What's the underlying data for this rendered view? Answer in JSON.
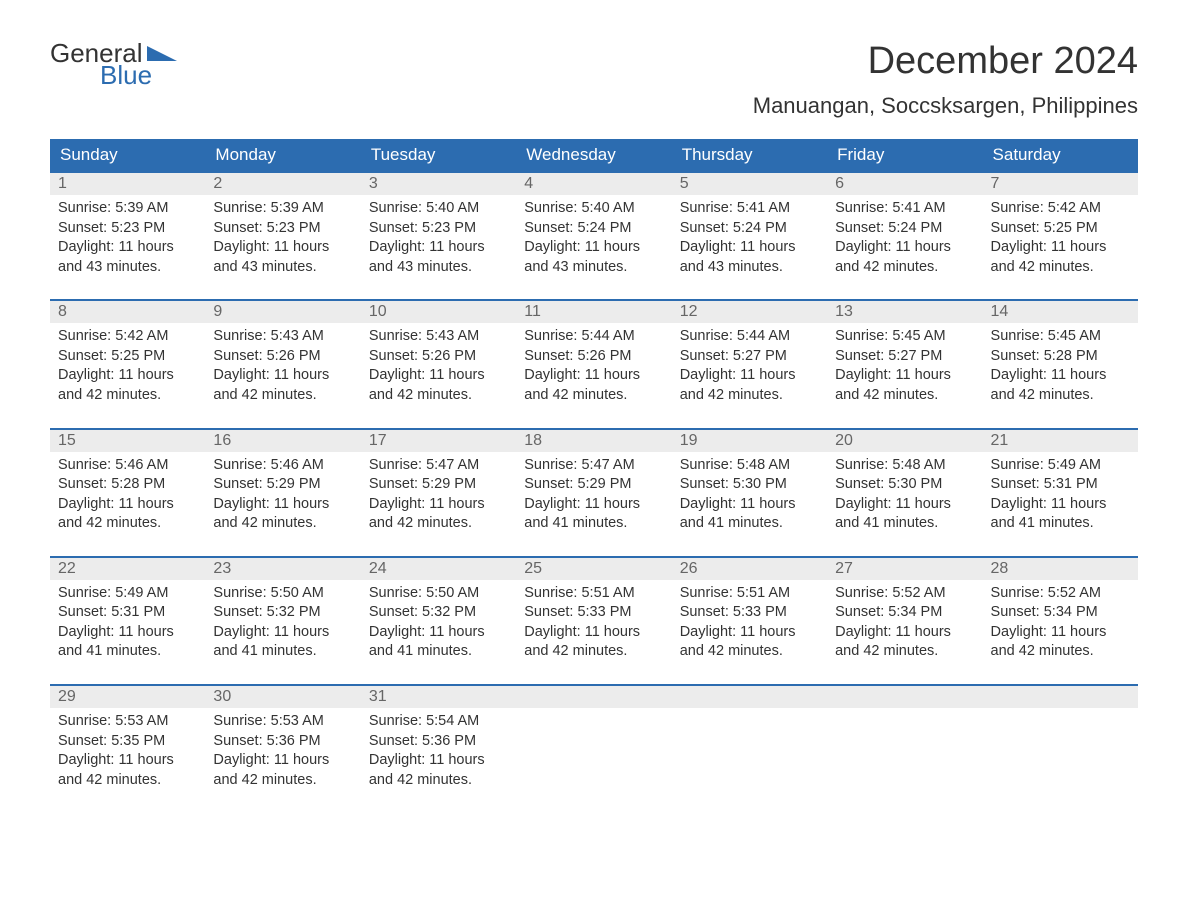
{
  "logo": {
    "text_general": "General",
    "text_blue": "Blue"
  },
  "header": {
    "month_title": "December 2024",
    "location": "Manuangan, Soccsksargen, Philippines"
  },
  "colors": {
    "header_bg": "#2c6cb0",
    "day_num_bg": "#ececec",
    "text": "#333333"
  },
  "day_names": [
    "Sunday",
    "Monday",
    "Tuesday",
    "Wednesday",
    "Thursday",
    "Friday",
    "Saturday"
  ],
  "weeks": [
    [
      {
        "day": "1",
        "sunrise": "Sunrise: 5:39 AM",
        "sunset": "Sunset: 5:23 PM",
        "daylight1": "Daylight: 11 hours",
        "daylight2": "and 43 minutes."
      },
      {
        "day": "2",
        "sunrise": "Sunrise: 5:39 AM",
        "sunset": "Sunset: 5:23 PM",
        "daylight1": "Daylight: 11 hours",
        "daylight2": "and 43 minutes."
      },
      {
        "day": "3",
        "sunrise": "Sunrise: 5:40 AM",
        "sunset": "Sunset: 5:23 PM",
        "daylight1": "Daylight: 11 hours",
        "daylight2": "and 43 minutes."
      },
      {
        "day": "4",
        "sunrise": "Sunrise: 5:40 AM",
        "sunset": "Sunset: 5:24 PM",
        "daylight1": "Daylight: 11 hours",
        "daylight2": "and 43 minutes."
      },
      {
        "day": "5",
        "sunrise": "Sunrise: 5:41 AM",
        "sunset": "Sunset: 5:24 PM",
        "daylight1": "Daylight: 11 hours",
        "daylight2": "and 43 minutes."
      },
      {
        "day": "6",
        "sunrise": "Sunrise: 5:41 AM",
        "sunset": "Sunset: 5:24 PM",
        "daylight1": "Daylight: 11 hours",
        "daylight2": "and 42 minutes."
      },
      {
        "day": "7",
        "sunrise": "Sunrise: 5:42 AM",
        "sunset": "Sunset: 5:25 PM",
        "daylight1": "Daylight: 11 hours",
        "daylight2": "and 42 minutes."
      }
    ],
    [
      {
        "day": "8",
        "sunrise": "Sunrise: 5:42 AM",
        "sunset": "Sunset: 5:25 PM",
        "daylight1": "Daylight: 11 hours",
        "daylight2": "and 42 minutes."
      },
      {
        "day": "9",
        "sunrise": "Sunrise: 5:43 AM",
        "sunset": "Sunset: 5:26 PM",
        "daylight1": "Daylight: 11 hours",
        "daylight2": "and 42 minutes."
      },
      {
        "day": "10",
        "sunrise": "Sunrise: 5:43 AM",
        "sunset": "Sunset: 5:26 PM",
        "daylight1": "Daylight: 11 hours",
        "daylight2": "and 42 minutes."
      },
      {
        "day": "11",
        "sunrise": "Sunrise: 5:44 AM",
        "sunset": "Sunset: 5:26 PM",
        "daylight1": "Daylight: 11 hours",
        "daylight2": "and 42 minutes."
      },
      {
        "day": "12",
        "sunrise": "Sunrise: 5:44 AM",
        "sunset": "Sunset: 5:27 PM",
        "daylight1": "Daylight: 11 hours",
        "daylight2": "and 42 minutes."
      },
      {
        "day": "13",
        "sunrise": "Sunrise: 5:45 AM",
        "sunset": "Sunset: 5:27 PM",
        "daylight1": "Daylight: 11 hours",
        "daylight2": "and 42 minutes."
      },
      {
        "day": "14",
        "sunrise": "Sunrise: 5:45 AM",
        "sunset": "Sunset: 5:28 PM",
        "daylight1": "Daylight: 11 hours",
        "daylight2": "and 42 minutes."
      }
    ],
    [
      {
        "day": "15",
        "sunrise": "Sunrise: 5:46 AM",
        "sunset": "Sunset: 5:28 PM",
        "daylight1": "Daylight: 11 hours",
        "daylight2": "and 42 minutes."
      },
      {
        "day": "16",
        "sunrise": "Sunrise: 5:46 AM",
        "sunset": "Sunset: 5:29 PM",
        "daylight1": "Daylight: 11 hours",
        "daylight2": "and 42 minutes."
      },
      {
        "day": "17",
        "sunrise": "Sunrise: 5:47 AM",
        "sunset": "Sunset: 5:29 PM",
        "daylight1": "Daylight: 11 hours",
        "daylight2": "and 42 minutes."
      },
      {
        "day": "18",
        "sunrise": "Sunrise: 5:47 AM",
        "sunset": "Sunset: 5:29 PM",
        "daylight1": "Daylight: 11 hours",
        "daylight2": "and 41 minutes."
      },
      {
        "day": "19",
        "sunrise": "Sunrise: 5:48 AM",
        "sunset": "Sunset: 5:30 PM",
        "daylight1": "Daylight: 11 hours",
        "daylight2": "and 41 minutes."
      },
      {
        "day": "20",
        "sunrise": "Sunrise: 5:48 AM",
        "sunset": "Sunset: 5:30 PM",
        "daylight1": "Daylight: 11 hours",
        "daylight2": "and 41 minutes."
      },
      {
        "day": "21",
        "sunrise": "Sunrise: 5:49 AM",
        "sunset": "Sunset: 5:31 PM",
        "daylight1": "Daylight: 11 hours",
        "daylight2": "and 41 minutes."
      }
    ],
    [
      {
        "day": "22",
        "sunrise": "Sunrise: 5:49 AM",
        "sunset": "Sunset: 5:31 PM",
        "daylight1": "Daylight: 11 hours",
        "daylight2": "and 41 minutes."
      },
      {
        "day": "23",
        "sunrise": "Sunrise: 5:50 AM",
        "sunset": "Sunset: 5:32 PM",
        "daylight1": "Daylight: 11 hours",
        "daylight2": "and 41 minutes."
      },
      {
        "day": "24",
        "sunrise": "Sunrise: 5:50 AM",
        "sunset": "Sunset: 5:32 PM",
        "daylight1": "Daylight: 11 hours",
        "daylight2": "and 41 minutes."
      },
      {
        "day": "25",
        "sunrise": "Sunrise: 5:51 AM",
        "sunset": "Sunset: 5:33 PM",
        "daylight1": "Daylight: 11 hours",
        "daylight2": "and 42 minutes."
      },
      {
        "day": "26",
        "sunrise": "Sunrise: 5:51 AM",
        "sunset": "Sunset: 5:33 PM",
        "daylight1": "Daylight: 11 hours",
        "daylight2": "and 42 minutes."
      },
      {
        "day": "27",
        "sunrise": "Sunrise: 5:52 AM",
        "sunset": "Sunset: 5:34 PM",
        "daylight1": "Daylight: 11 hours",
        "daylight2": "and 42 minutes."
      },
      {
        "day": "28",
        "sunrise": "Sunrise: 5:52 AM",
        "sunset": "Sunset: 5:34 PM",
        "daylight1": "Daylight: 11 hours",
        "daylight2": "and 42 minutes."
      }
    ],
    [
      {
        "day": "29",
        "sunrise": "Sunrise: 5:53 AM",
        "sunset": "Sunset: 5:35 PM",
        "daylight1": "Daylight: 11 hours",
        "daylight2": "and 42 minutes."
      },
      {
        "day": "30",
        "sunrise": "Sunrise: 5:53 AM",
        "sunset": "Sunset: 5:36 PM",
        "daylight1": "Daylight: 11 hours",
        "daylight2": "and 42 minutes."
      },
      {
        "day": "31",
        "sunrise": "Sunrise: 5:54 AM",
        "sunset": "Sunset: 5:36 PM",
        "daylight1": "Daylight: 11 hours",
        "daylight2": "and 42 minutes."
      },
      {
        "empty": true
      },
      {
        "empty": true
      },
      {
        "empty": true
      },
      {
        "empty": true
      }
    ]
  ]
}
